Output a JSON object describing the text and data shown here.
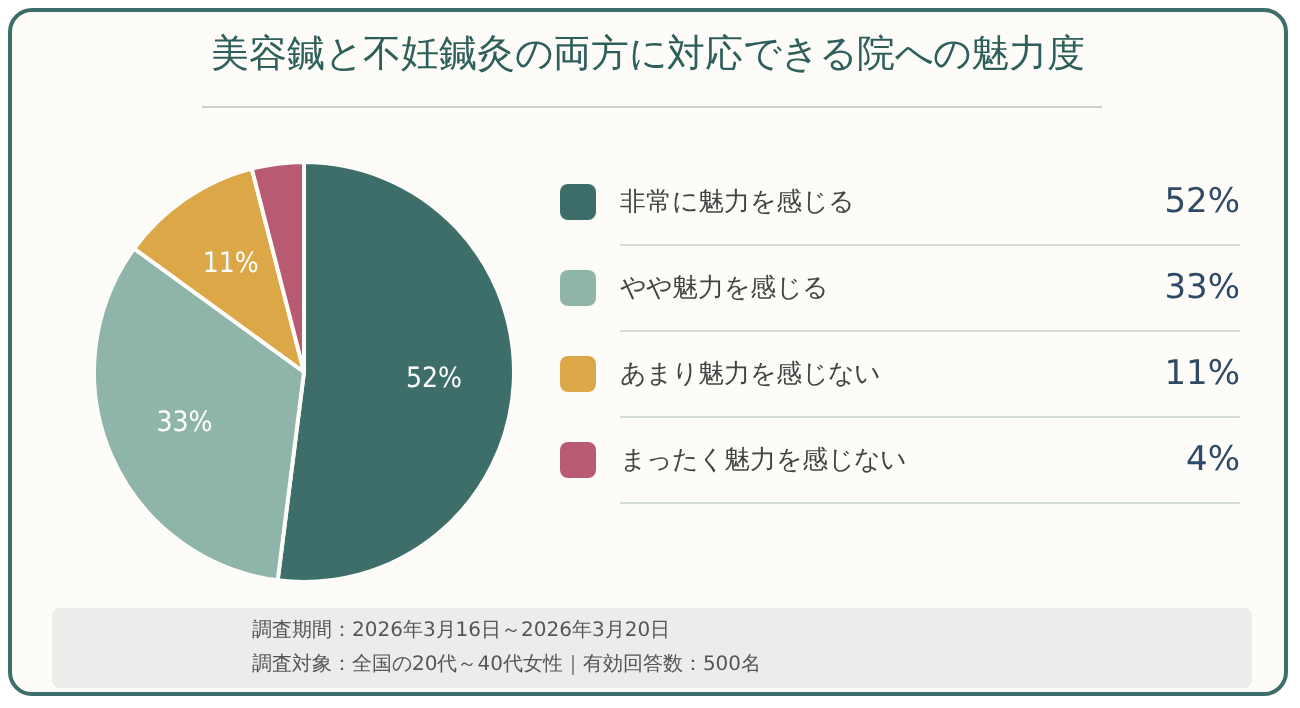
{
  "chart_data": {
    "type": "pie",
    "title": "美容鍼と不妊鍼灸の両方に対応できる院への魅力度",
    "categories": [
      "非常に魅力を感じる",
      "やや魅力を感じる",
      "あまり魅力を感じない",
      "まったく魅力を感じない"
    ],
    "values": [
      52,
      33,
      11,
      4
    ],
    "colors": [
      "#3d6e69",
      "#8fb5aa",
      "#dca747",
      "#b85a72"
    ],
    "value_labels": [
      "52%",
      "33%",
      "11%",
      "4%"
    ],
    "legend": "right",
    "annotations": [
      "調査期間：2026年3月16日～2026年3月20日",
      "調査対象：全国の20代～40代女性｜有効回答数：500名"
    ]
  }
}
